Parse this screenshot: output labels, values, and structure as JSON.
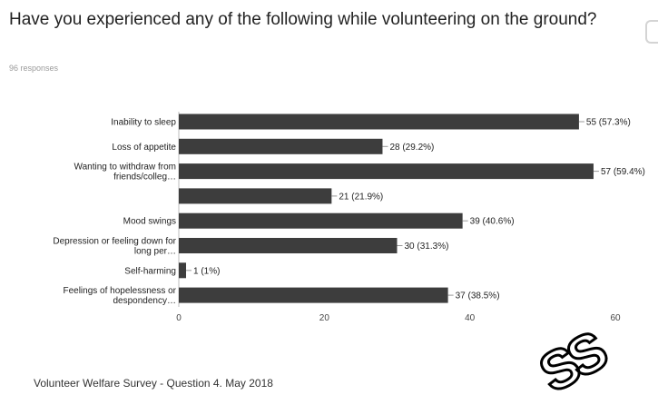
{
  "header": {
    "title": "Have you experienced any of the following while volunteering on the ground?",
    "responses": "96 responses"
  },
  "footer": {
    "caption": "Volunteer Welfare Survey - Question 4. May 2018"
  },
  "chart_data": {
    "type": "bar",
    "orientation": "horizontal",
    "categories": [
      [
        "Inability to sleep"
      ],
      [
        "Loss of appetite"
      ],
      [
        "Wanting to withdraw from",
        "friends/colleg…"
      ],
      [],
      [
        "Mood swings"
      ],
      [
        "Depression or feeling down for",
        "long per…"
      ],
      [
        "Self-harming"
      ],
      [
        "Feelings of hopelessness or",
        "despondency…"
      ]
    ],
    "values": [
      55,
      28,
      57,
      21,
      39,
      30,
      1,
      37
    ],
    "data_labels": [
      "55 (57.3%)",
      "28 (29.2%)",
      "57 (59.4%)",
      "21 (21.9%)",
      "39 (40.6%)",
      "30 (31.3%)",
      "1 (1%)",
      "37 (38.5%)"
    ],
    "xlim": [
      0,
      60
    ],
    "xticks": [
      0,
      20,
      40,
      60
    ],
    "grid": false,
    "bar_color": "#3d3d3d"
  },
  "watermark": {
    "text": "SS",
    "color": "#000000"
  }
}
